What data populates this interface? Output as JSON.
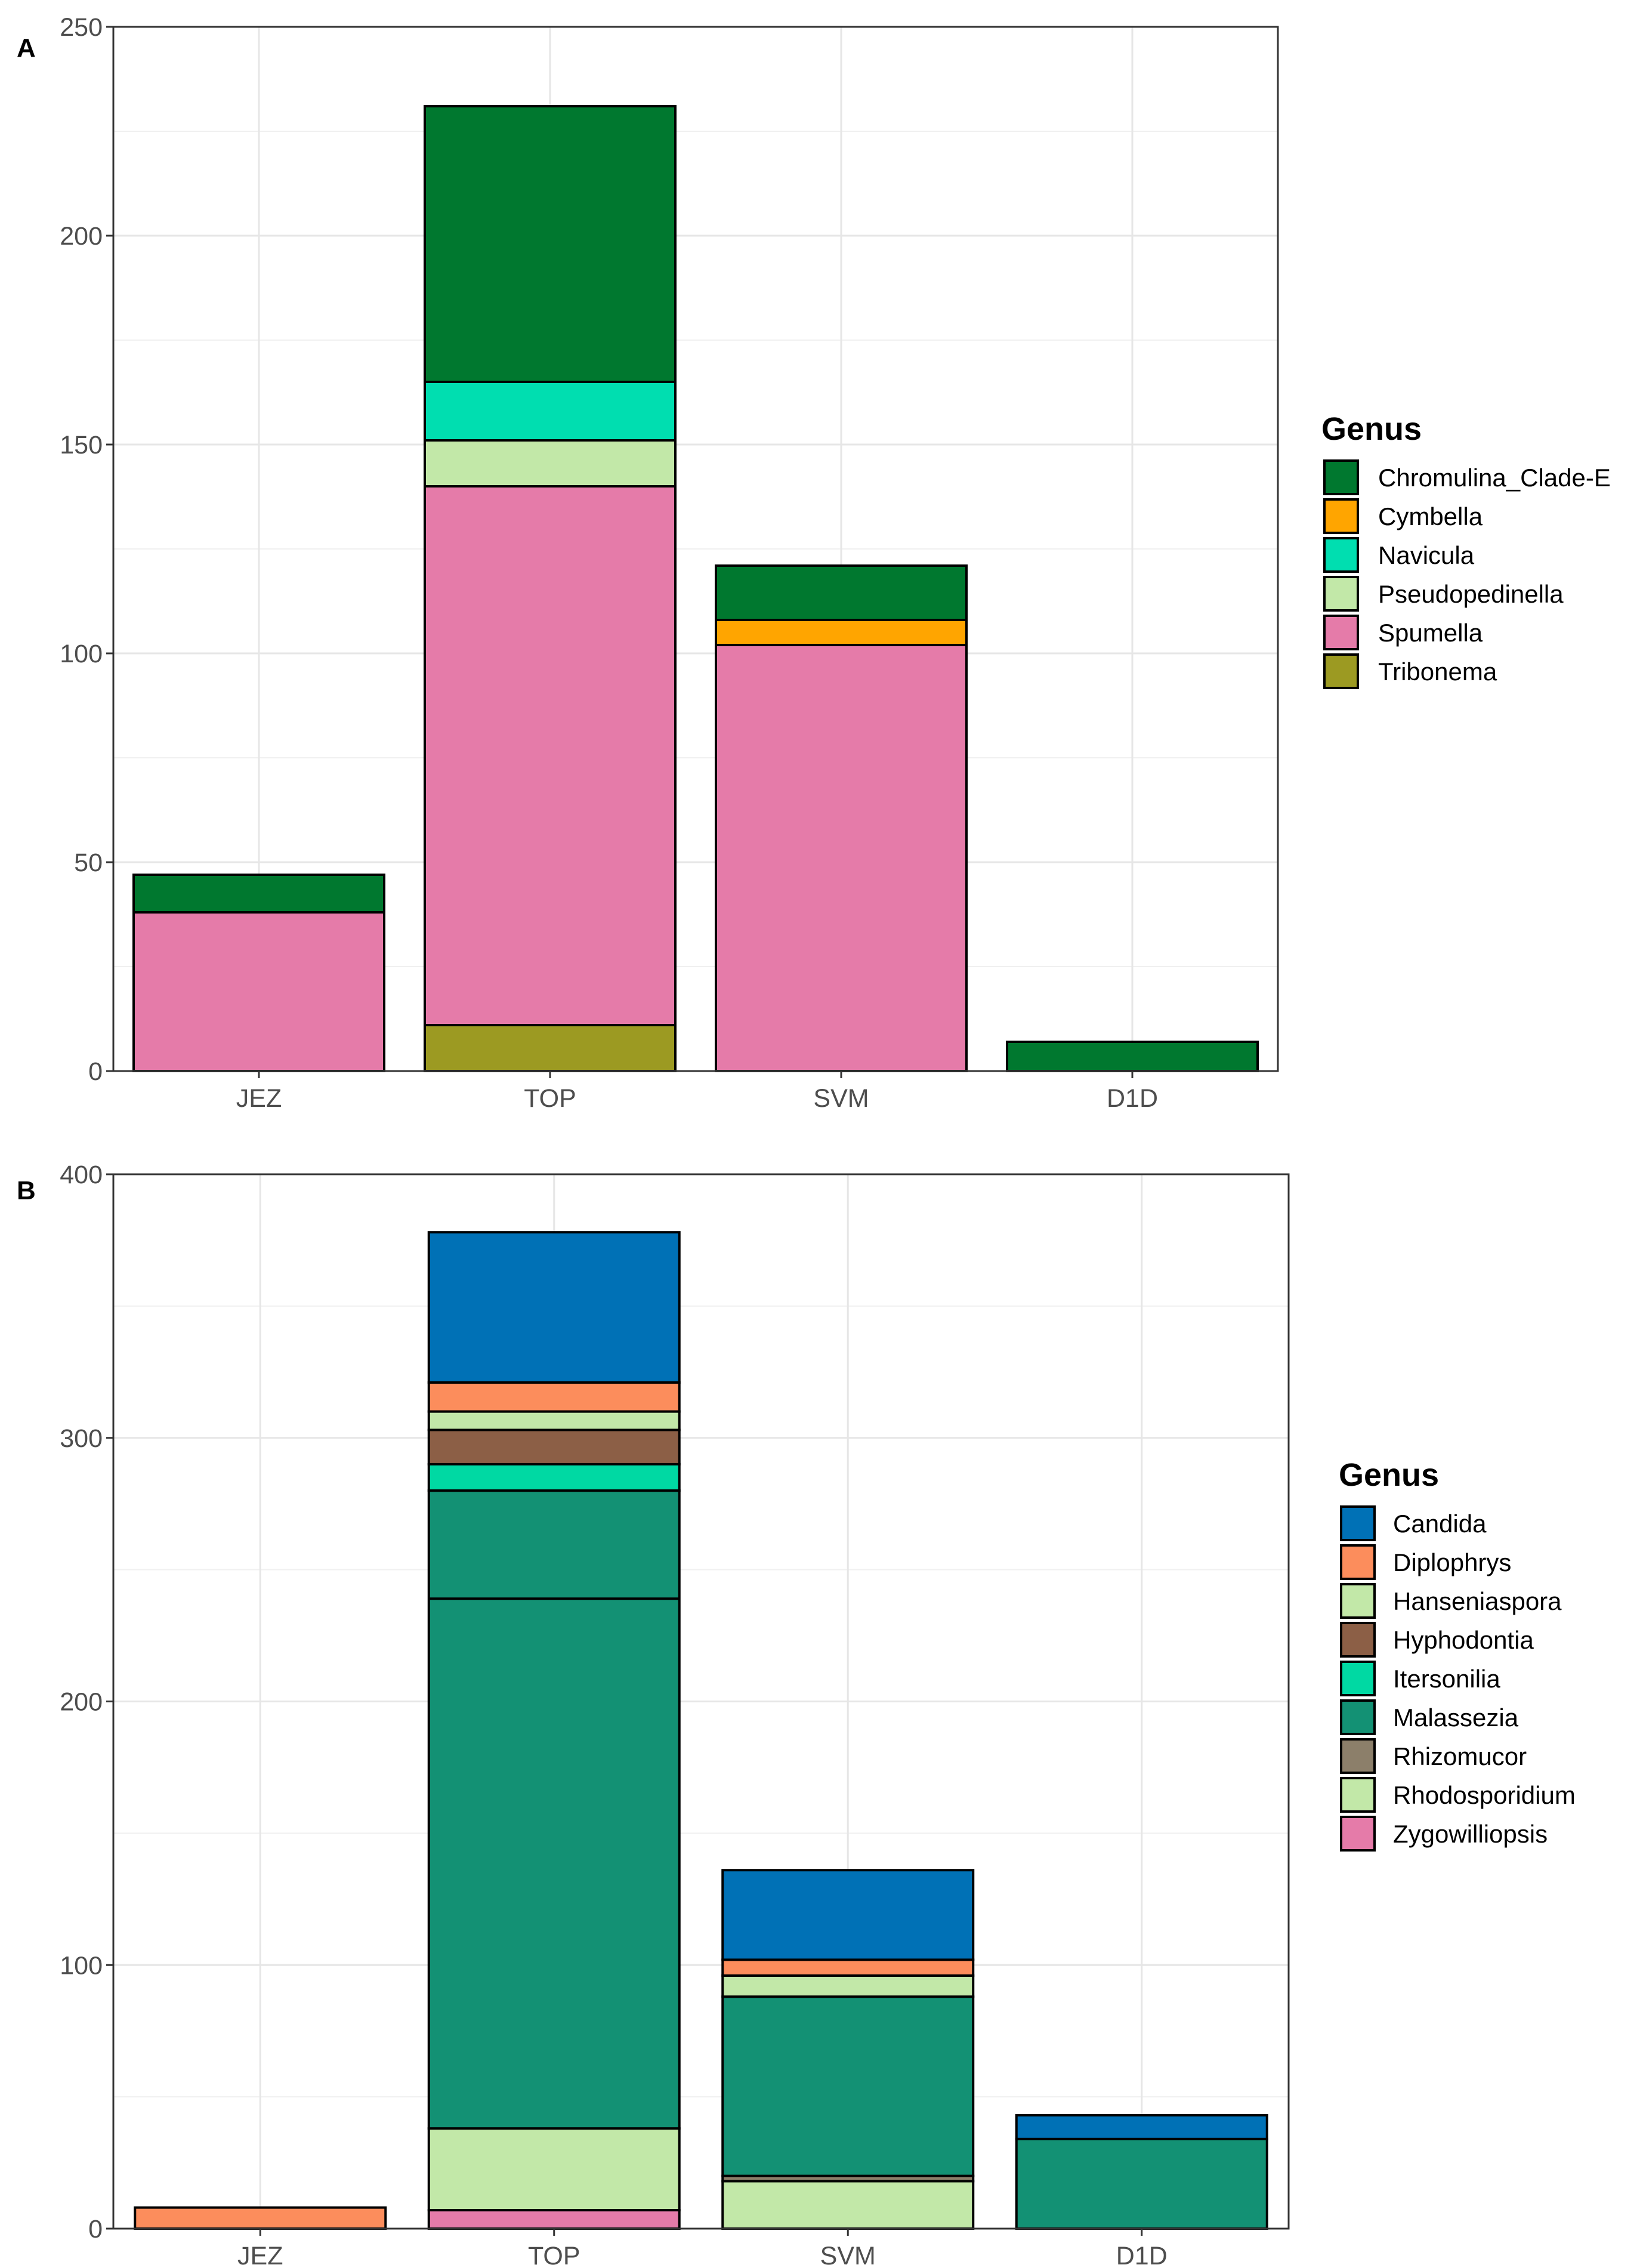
{
  "chart_data": [
    {
      "panel": "A",
      "type": "bar",
      "stacked": true,
      "categories": [
        "JEZ",
        "TOP",
        "SVM",
        "D1D"
      ],
      "ylim": [
        0,
        250
      ],
      "yticks": [
        0,
        50,
        100,
        150,
        200,
        250
      ],
      "grid": true,
      "legend_position": "right",
      "legend_title": "Genus",
      "series": [
        {
          "name": "Chromulina_Clade-E",
          "color": "#00782f",
          "values": [
            9,
            66,
            13,
            7
          ]
        },
        {
          "name": "Cymbella",
          "color": "#ffa500",
          "values": [
            0,
            0,
            6,
            0
          ]
        },
        {
          "name": "Navicula",
          "color": "#00deb0",
          "values": [
            0,
            14,
            0,
            0
          ]
        },
        {
          "name": "Pseudopedinella",
          "color": "#c2e8a8",
          "values": [
            0,
            11,
            0,
            0
          ]
        },
        {
          "name": "Spumella",
          "color": "#e57ba9",
          "values": [
            38,
            129,
            102,
            0
          ]
        },
        {
          "name": "Tribonema",
          "color": "#9c9a22",
          "values": [
            0,
            11,
            0,
            0
          ]
        }
      ],
      "stack_order": [
        "Tribonema",
        "Spumella",
        "Pseudopedinella",
        "Navicula",
        "Cymbella",
        "Chromulina_Clade-E"
      ]
    },
    {
      "panel": "B",
      "type": "bar",
      "stacked": true,
      "categories": [
        "JEZ",
        "TOP",
        "SVM",
        "D1D"
      ],
      "ylim": [
        0,
        400
      ],
      "yticks": [
        0,
        100,
        200,
        300,
        400
      ],
      "grid": true,
      "legend_position": "right",
      "legend_title": "Genus",
      "series": [
        {
          "name": "Candida",
          "color": "#0071b6",
          "values": [
            0,
            57,
            34,
            9
          ]
        },
        {
          "name": "Diplophrys",
          "color": "#fc8d5c",
          "values": [
            8,
            11,
            6,
            0
          ]
        },
        {
          "name": "Hanseniaspora",
          "color": "#c2e8a8",
          "values": [
            0,
            7,
            8,
            0
          ]
        },
        {
          "name": "Hyphodontia",
          "color": "#8c5f46",
          "values": [
            0,
            13,
            0,
            0
          ]
        },
        {
          "name": "Itersonilia",
          "color": "#00d9a3",
          "values": [
            0,
            10,
            0,
            0
          ]
        },
        {
          "name": "Malassezia",
          "color": "#139174",
          "values": [
            0,
            242,
            68,
            34
          ]
        },
        {
          "name": "Rhizomucor",
          "color": "#8c7f6a",
          "values": [
            0,
            0,
            2,
            0
          ]
        },
        {
          "name": "Rhodosporidium",
          "color": "#c2e8a8",
          "values": [
            0,
            31,
            18,
            0
          ]
        },
        {
          "name": "Zygowilliopsis",
          "color": "#e57ba9",
          "values": [
            0,
            7,
            0,
            0
          ]
        }
      ],
      "stack_order": [
        "Zygowilliopsis",
        "Rhodosporidium",
        "Rhizomucor",
        "Malassezia",
        "Itersonilia",
        "Hyphodontia",
        "Hanseniaspora",
        "Diplophrys",
        "Candida"
      ],
      "segment_breaks": [
        {
          "category": "TOP",
          "series": "Malassezia",
          "at": 239
        }
      ]
    }
  ]
}
